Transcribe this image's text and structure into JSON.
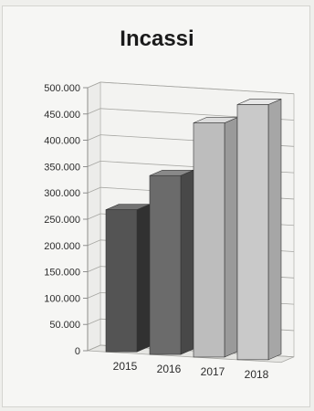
{
  "chart_data": {
    "type": "bar",
    "title": "Incassi",
    "categories": [
      "2015",
      "2016",
      "2017",
      "2018"
    ],
    "values": [
      270000,
      340000,
      445000,
      485000
    ],
    "ylim": [
      0,
      500000
    ],
    "yticks": [
      "0",
      "50.000",
      "100.000",
      "150.000",
      "200.000",
      "250.000",
      "300.000",
      "350.000",
      "400.000",
      "450.000",
      "500.000"
    ],
    "grid": true,
    "bar_colors": [
      "#545454",
      "#6b6b6b",
      "#bdbdbd",
      "#c9c9c9"
    ]
  }
}
